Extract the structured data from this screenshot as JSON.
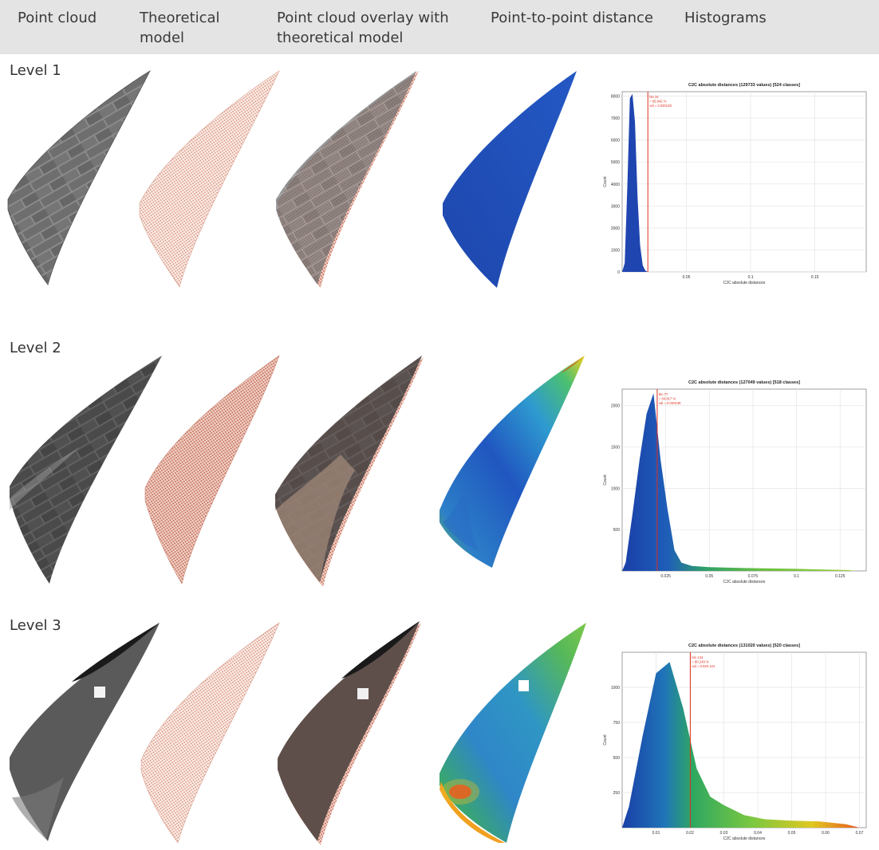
{
  "header": {
    "columns": [
      "Point cloud",
      "Theoretical\nmodel",
      "Point cloud overlay with\ntheoretical model",
      "Point-to-point distance",
      "Histograms"
    ]
  },
  "levels": [
    {
      "label": "Level 1"
    },
    {
      "label": "Level 2"
    },
    {
      "label": "Level 3"
    }
  ],
  "colors": {
    "header_bg": "#e4e4e4",
    "model_points": "#e8b8a8",
    "distance_blue": "#2050b8",
    "threshold_line": "#e03020"
  },
  "chart_data": [
    {
      "type": "bar",
      "title": "C2C absolute distances (129733 values) [524 classes]",
      "xlabel": "C2C absolute distances",
      "ylabel": "Count",
      "x_ticks": [
        "0.05",
        "0.1",
        "0.15"
      ],
      "y_ticks": [
        "0",
        "1000",
        "2000",
        "3000",
        "4000",
        "5000",
        "6000",
        "7000",
        "8000"
      ],
      "xlim": [
        0,
        0.19
      ],
      "ylim": [
        0,
        8200
      ],
      "marker_label": [
        "bin 24",
        "= 95.942 %",
        "val = 0.020128"
      ],
      "marker_x": 0.02,
      "peak": {
        "x": 0.008,
        "y": 8100
      },
      "x": [
        0.002,
        0.004,
        0.006,
        0.008,
        0.01,
        0.012,
        0.014,
        0.016,
        0.018
      ],
      "values": [
        400,
        3800,
        7900,
        8100,
        6800,
        3400,
        1200,
        300,
        60
      ]
    },
    {
      "type": "bar",
      "title": "C2C absolute distances (127049 values) [518 classes]",
      "xlabel": "C2C absolute distances",
      "ylabel": "Count",
      "x_ticks": [
        "0.025",
        "0.05",
        "0.075",
        "0.1",
        "0.125"
      ],
      "y_ticks": [
        "500",
        "1000",
        "1500",
        "2000"
      ],
      "xlim": [
        0,
        0.14
      ],
      "ylim": [
        0,
        2200
      ],
      "marker_label": [
        "bin 77",
        "= 64.817 %",
        "val = 0.020136"
      ],
      "marker_x": 0.0201,
      "peak": {
        "x": 0.018,
        "y": 2150
      },
      "x": [
        0.002,
        0.006,
        0.01,
        0.014,
        0.018,
        0.022,
        0.026,
        0.03,
        0.034,
        0.04,
        0.05,
        0.07,
        0.1,
        0.13
      ],
      "values": [
        100,
        700,
        1350,
        1900,
        2150,
        1350,
        750,
        250,
        100,
        60,
        45,
        35,
        25,
        10
      ]
    },
    {
      "type": "bar",
      "title": "C2C absolute distances (131020 values) [520 classes]",
      "xlabel": "C2C absolute distances",
      "ylabel": "Count",
      "x_ticks": [
        "0.01",
        "0.02",
        "0.03",
        "0.04",
        "0.05",
        "0.06",
        "0.07"
      ],
      "y_ticks": [
        "250",
        "500",
        "750",
        "1000"
      ],
      "xlim": [
        0,
        0.072
      ],
      "ylim": [
        0,
        1250
      ],
      "marker_label": [
        "bin 144",
        "= 80.249 %",
        "val = 0.020 124"
      ],
      "marker_x": 0.0201,
      "peak": {
        "x": 0.014,
        "y": 1180
      },
      "x": [
        0.002,
        0.006,
        0.01,
        0.014,
        0.018,
        0.022,
        0.026,
        0.03,
        0.036,
        0.042,
        0.05,
        0.058,
        0.066
      ],
      "values": [
        150,
        650,
        1100,
        1180,
        850,
        420,
        220,
        160,
        90,
        60,
        50,
        45,
        25
      ]
    }
  ]
}
